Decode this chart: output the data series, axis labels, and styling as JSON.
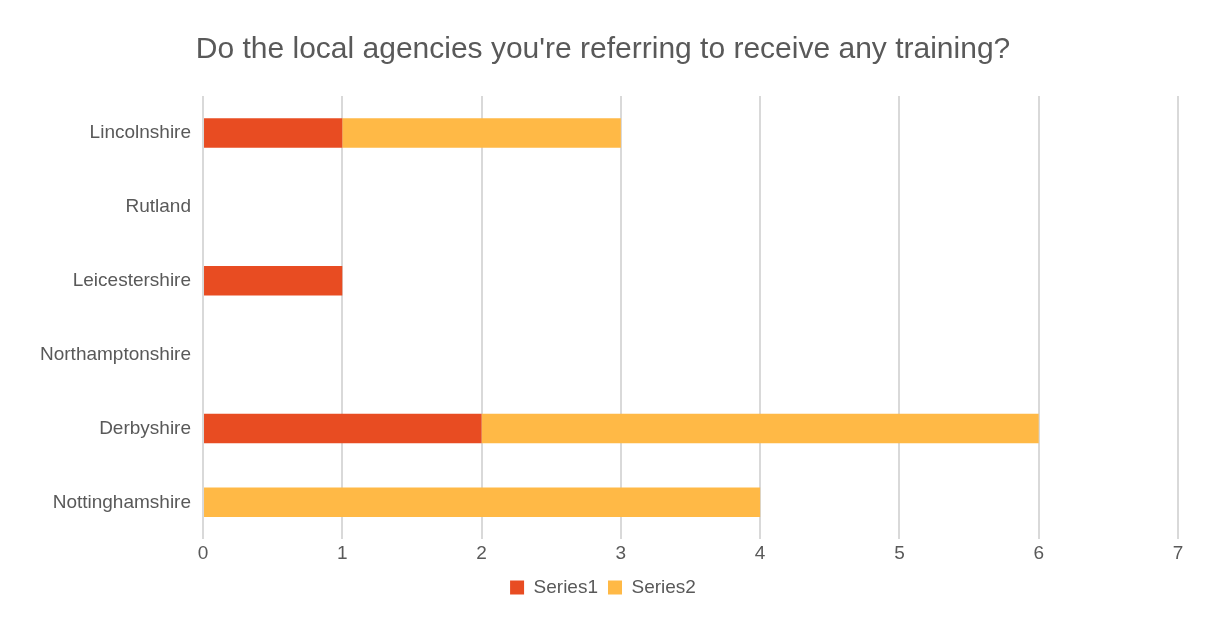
{
  "chart_data": {
    "type": "bar",
    "title": "Do the local agencies you're referring to receive any training?",
    "orientation": "horizontal",
    "stacked": true,
    "categories": [
      "Lincolnshire",
      "Rutland",
      "Leicestershire",
      "Northamptonshire",
      "Derbyshire",
      "Nottinghamshire"
    ],
    "series": [
      {
        "name": "Series1",
        "color": "#e84c22",
        "values": [
          1,
          null,
          1,
          null,
          2,
          null
        ]
      },
      {
        "name": "Series2",
        "color": "#ffb946",
        "values": [
          2,
          null,
          null,
          null,
          4,
          4
        ]
      }
    ],
    "xlim": [
      0,
      7
    ],
    "xticks": [
      0,
      1,
      2,
      3,
      4,
      5,
      6,
      7
    ],
    "grid": "x",
    "legend": "bottom"
  }
}
